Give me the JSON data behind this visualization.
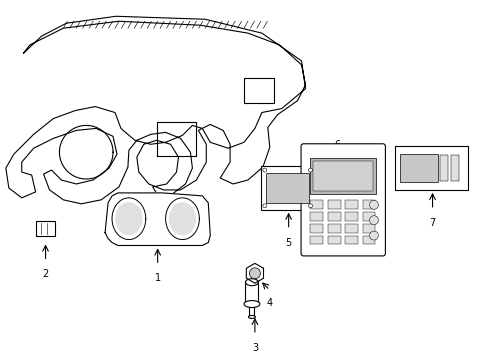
{
  "background_color": "#ffffff",
  "line_color": "#000000",
  "label_color": "#000000",
  "figsize": [
    4.89,
    3.6
  ],
  "dpi": 100,
  "lw": 0.8
}
